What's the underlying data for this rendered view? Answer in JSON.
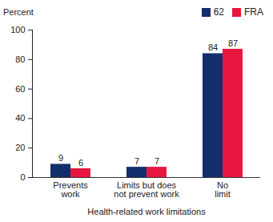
{
  "chart_data": {
    "type": "bar",
    "categories": [
      "Prevents work",
      "Limits but does not prevent work",
      "No limit"
    ],
    "series": [
      {
        "name": "62",
        "color": "#132f6b",
        "values": [
          9,
          7,
          84
        ]
      },
      {
        "name": "FRA",
        "color": "#e8173f",
        "values": [
          6,
          7,
          87
        ]
      }
    ],
    "ylabel": "Percent",
    "xlabel": "Health-related work limitations",
    "ylim": [
      0,
      100
    ],
    "yticks": [
      0,
      20,
      40,
      60,
      80,
      100
    ],
    "grid": false,
    "legend": "top-right",
    "data_labels": true
  }
}
